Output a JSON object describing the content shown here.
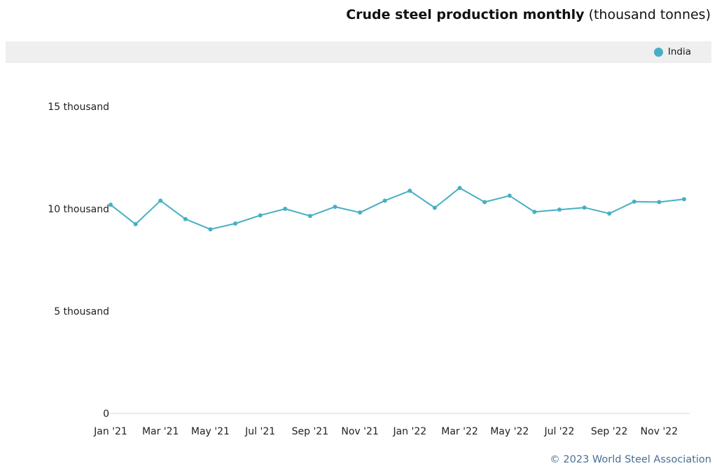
{
  "header": {
    "title_main": "Crude steel production monthly",
    "title_unit": " (thousand tonnes)"
  },
  "legend": {
    "label": "India",
    "color": "#46b0c3"
  },
  "footer": {
    "credit": "© 2023 World Steel Association"
  },
  "chart_data": {
    "type": "line",
    "title": "Crude steel production monthly (thousand tonnes)",
    "xlabel": "",
    "ylabel": "",
    "ylim": [
      0,
      15000
    ],
    "yticks": [
      {
        "value": 0,
        "label": "0"
      },
      {
        "value": 5000,
        "label": "5 thousand"
      },
      {
        "value": 10000,
        "label": "10 thousand"
      },
      {
        "value": 15000,
        "label": "15 thousand"
      }
    ],
    "categories": [
      "Jan '21",
      "Feb '21",
      "Mar '21",
      "Apr '21",
      "May '21",
      "Jun '21",
      "Jul '21",
      "Aug '21",
      "Sep '21",
      "Oct '21",
      "Nov '21",
      "Dec '21",
      "Jan '22",
      "Feb '22",
      "Mar '22",
      "Apr '22",
      "May '22",
      "Jun '22",
      "Jul '22",
      "Aug '22",
      "Sep '22",
      "Oct '22",
      "Nov '22",
      "Dec '22"
    ],
    "xtick_labels": [
      "Jan '21",
      "Mar '21",
      "May '21",
      "Jul '21",
      "Sep '21",
      "Nov '21",
      "Jan '22",
      "Mar '22",
      "May '22",
      "Jul '22",
      "Sep '22",
      "Nov '22"
    ],
    "series": [
      {
        "name": "India",
        "color": "#46b0c3",
        "values": [
          10200,
          9250,
          10400,
          9500,
          9000,
          9280,
          9680,
          10000,
          9650,
          10100,
          9820,
          10400,
          10880,
          10050,
          11020,
          10330,
          10640,
          9850,
          9960,
          10060,
          9770,
          10350,
          10330,
          10470
        ]
      }
    ]
  }
}
